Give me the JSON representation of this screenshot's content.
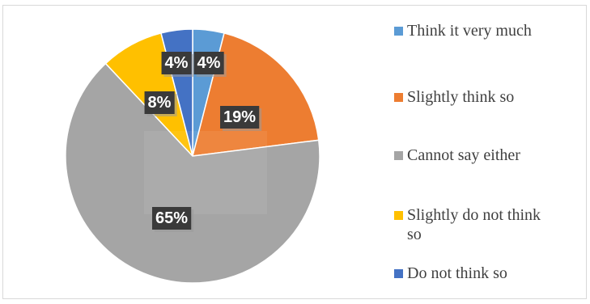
{
  "chart_data": {
    "type": "pie",
    "categories": [
      "Think it very much",
      "Slightly think so",
      "Cannot say either",
      "Slightly do not think so",
      "Do not think so"
    ],
    "values": [
      4,
      19,
      65,
      8,
      4
    ],
    "data_labels": [
      "4%",
      "19%",
      "65%",
      "8%",
      "4%"
    ],
    "colors": [
      "#5b9bd5",
      "#ed7d31",
      "#a5a5a5",
      "#ffc000",
      "#4472c4"
    ],
    "start_angle_deg": 0,
    "direction": "clockwise",
    "legend_position": "right"
  },
  "legend": {
    "items": [
      {
        "label": "Think it very much",
        "color": "#5b9bd5"
      },
      {
        "label": "Slightly think so",
        "color": "#ed7d31"
      },
      {
        "label": "Cannot say either",
        "color": "#a5a5a5"
      },
      {
        "label": "Slightly do not think so",
        "color": "#ffc000"
      },
      {
        "label": "Do not think so",
        "color": "#4472c4"
      }
    ]
  }
}
